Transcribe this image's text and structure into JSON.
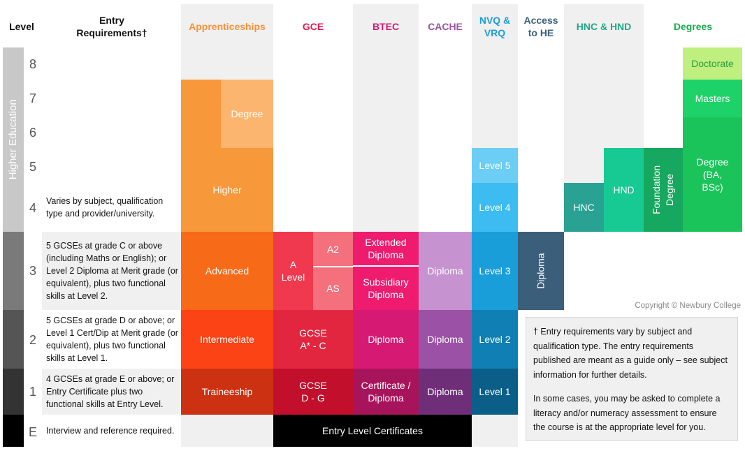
{
  "headers": {
    "level": "Level",
    "entry": "Entry Requirements†",
    "apprenticeships": "Apprenticeships",
    "gce": "GCE",
    "btec": "BTEC",
    "cache": "CACHE",
    "nvq": "NVQ & VRQ",
    "access": "Access to HE",
    "hnc_hnd": "HNC & HND",
    "degrees": "Degrees"
  },
  "colors": {
    "apprenticeships": "#f7923a",
    "gce": "#e0184d",
    "btec": "#d6186f",
    "cache": "#9b52a6",
    "nvq": "#1a9ed9",
    "access": "#3b5f7a",
    "hnc_hnd": "#20a68b",
    "degrees": "#1aab4b"
  },
  "side_label": "Higher Education",
  "levels": [
    "8",
    "7",
    "6",
    "5",
    "4",
    "3",
    "2",
    "1",
    "E"
  ],
  "requirements": {
    "level4": "Varies by subject, qualification type and provider/university.",
    "level3": "5 GCSEs at grade C or above (including Maths or English); or Level 2 Diploma at Merit grade (or equivalent), plus two functional skills at Level 2.",
    "level2": "5 GCSEs at grade D or above; or Level 1 Cert/Dip at Merit grade (or equivalent), plus two functional skills at Level 1.",
    "level1": "4 GCSEs at grade E or above; or Entry Certificate plus two functional skills at Entry Level.",
    "levelE": "Interview and reference required."
  },
  "apprenticeships": {
    "degree": "Degree",
    "higher": "Higher",
    "advanced": "Advanced",
    "intermediate": "Intermediate",
    "traineeship": "Traineeship"
  },
  "gce": {
    "a_level": "A Level",
    "a2": "A2",
    "as": "AS",
    "gcse_ac": "GCSE A* - C",
    "gcse_dg": "GCSE D - G"
  },
  "btec": {
    "extended": "Extended Diploma",
    "subsidiary": "Subsidiary Diploma",
    "diploma": "Diploma",
    "certificate": "Certificate / Diploma"
  },
  "cache": {
    "l3": "Diploma",
    "l2": "Diploma",
    "l1": "Diploma"
  },
  "nvq": {
    "l5": "Level 5",
    "l4": "Level 4",
    "l3": "Level 3",
    "l2": "Level 2",
    "l1": "Level 1"
  },
  "access": {
    "diploma": "Diploma"
  },
  "hnc_hnd": {
    "hnc": "HNC",
    "hnd": "HND"
  },
  "degrees": {
    "foundation": "Foundation Degree",
    "degree": "Degree (BA, BSc)",
    "masters": "Masters",
    "doctorate": "Doctorate"
  },
  "entry_level": "Entry Level Certificates",
  "copyright": "Copyright © Newbury College",
  "notes": {
    "note1": "† Entry requirements vary by subject and qualification type. The entry requirements published are meant as a guide only – see subject information for further details.",
    "note2": "In some cases, you may be asked to complete a literacy and/or numeracy assessment to ensure the course is at the appropriate level for you."
  }
}
